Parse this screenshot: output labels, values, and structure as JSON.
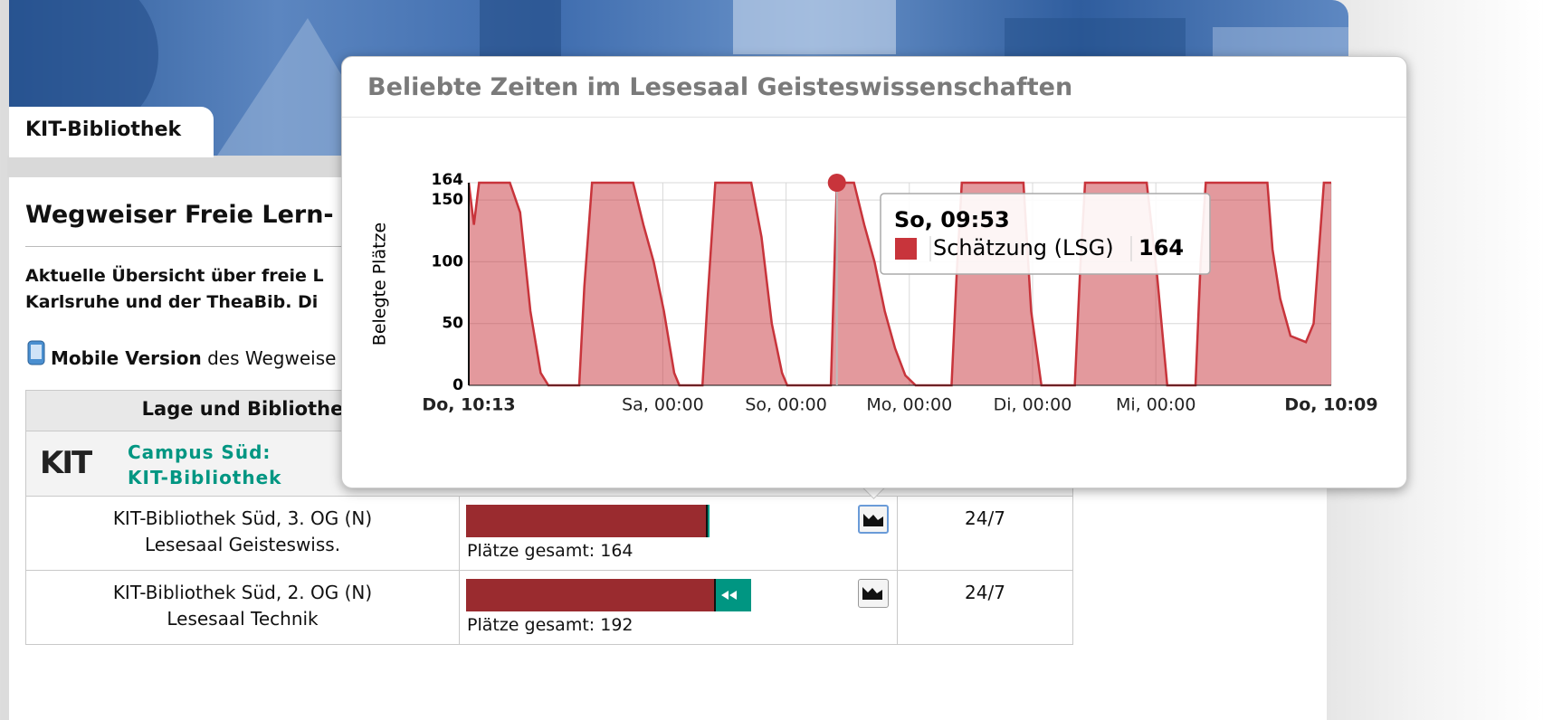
{
  "header": {
    "tab": "KIT-Bibliothek"
  },
  "page": {
    "title": "Wegweiser Freie Lern- u",
    "intro": [
      "Aktuelle Übersicht über freie L",
      "Karlsruhe und der TheaBib. Di"
    ],
    "mobile": {
      "link": "Mobile Version",
      "text": "des Wegweise"
    }
  },
  "table": {
    "header": "Lage und Bibliothe",
    "group": {
      "logo": "KIT",
      "lines": [
        "Campus Süd:",
        "KIT-Bibliothek"
      ]
    },
    "rows": [
      {
        "location": [
          "KIT-Bibliothek Süd, 3. OG (N)",
          "Lesesaal Geisteswiss."
        ],
        "occupied": 163,
        "total_label": "Plätze gesamt:",
        "total": 164,
        "hours": "24/7"
      },
      {
        "location": [
          "KIT-Bibliothek Süd, 2. OG (N)",
          "Lesesaal Technik"
        ],
        "occupied": 168,
        "total_label": "Plätze gesamt:",
        "total": 192,
        "hours": "24/7"
      }
    ]
  },
  "chart_data": {
    "type": "area",
    "title": "Beliebte Zeiten im Lesesaal Geisteswissenschaften",
    "y_label": "Belegte Plätze",
    "x": [
      0,
      1,
      2,
      8,
      10,
      12,
      14,
      15.5,
      21.5,
      22.5,
      24,
      32,
      34,
      36,
      38,
      40,
      41,
      45.5,
      46.5,
      48,
      55,
      57,
      59,
      61,
      62,
      70.5,
      71.67,
      75,
      77,
      79,
      81,
      83,
      85,
      87,
      94,
      95,
      96,
      108,
      109.5,
      111.5,
      118,
      119,
      120,
      132,
      134,
      136,
      141.5,
      142.5,
      143.5,
      155.5,
      156.5,
      158,
      160,
      163,
      164.5,
      166.5,
      167.93
    ],
    "series": [
      {
        "name": "Schätzung (LSG)",
        "color": "#c8343b",
        "values": [
          164,
          130,
          164,
          164,
          140,
          60,
          10,
          0,
          0,
          80,
          164,
          164,
          130,
          100,
          60,
          10,
          0,
          0,
          70,
          164,
          164,
          120,
          50,
          10,
          0,
          0,
          164,
          164,
          130,
          100,
          60,
          30,
          8,
          0,
          0,
          90,
          164,
          164,
          60,
          0,
          0,
          90,
          164,
          164,
          90,
          0,
          0,
          100,
          164,
          164,
          110,
          70,
          40,
          35,
          50,
          164,
          164
        ]
      }
    ],
    "xlim": [
      0,
      167.93
    ],
    "xticks": [
      {
        "value": 0,
        "label": "Do, 10:13"
      },
      {
        "value": 37.78,
        "label": "Sa, 00:00"
      },
      {
        "value": 61.78,
        "label": "So, 00:00"
      },
      {
        "value": 85.78,
        "label": "Mo, 00:00"
      },
      {
        "value": 109.78,
        "label": "Di, 00:00"
      },
      {
        "value": 133.78,
        "label": "Mi, 00:00"
      },
      {
        "value": 167.93,
        "label": "Do, 10:09"
      }
    ],
    "ylim": [
      0,
      164
    ],
    "yticks": [
      0,
      50,
      100,
      150,
      164
    ],
    "grid": true,
    "tooltip": {
      "label": "So, 09:53",
      "x": 71.67,
      "value": 164
    }
  }
}
